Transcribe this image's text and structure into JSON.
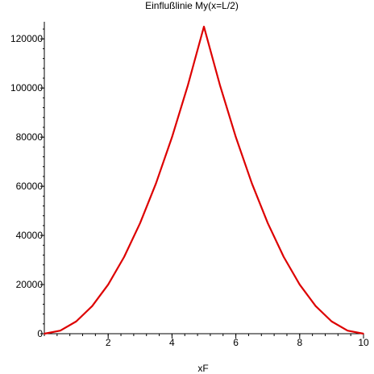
{
  "chart_data": {
    "type": "line",
    "title": "Einflußlinie My(x=L/2)",
    "xlabel": "xF",
    "ylabel": "",
    "xlim": [
      0,
      10
    ],
    "ylim": [
      0,
      125000
    ],
    "x_ticks": [
      2,
      4,
      6,
      8,
      10
    ],
    "y_ticks": [
      0,
      20000,
      40000,
      60000,
      80000,
      100000,
      120000
    ],
    "line_color": "#dd0000",
    "grid": false,
    "series": [
      {
        "name": "",
        "x": [
          0,
          0.5,
          1,
          1.5,
          2,
          2.5,
          3,
          3.5,
          4,
          4.5,
          5,
          5.5,
          6,
          6.5,
          7,
          7.5,
          8,
          8.5,
          9,
          9.5,
          10
        ],
        "values": [
          0,
          1250,
          5000,
          11250,
          20000,
          31250,
          45000,
          61250,
          80000,
          101250,
          125000,
          101250,
          80000,
          61250,
          45000,
          31250,
          20000,
          11250,
          5000,
          1250,
          0
        ]
      }
    ]
  }
}
